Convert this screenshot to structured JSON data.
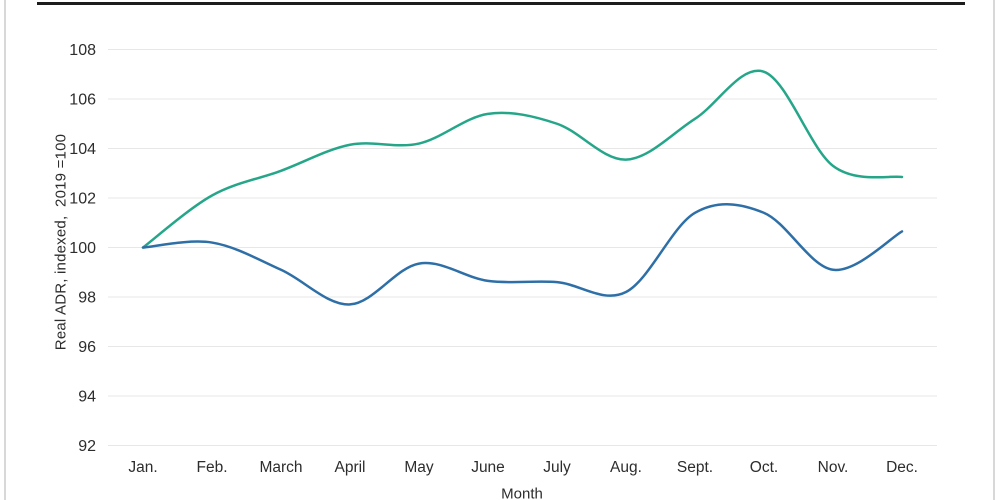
{
  "frame": {
    "top_rule_color": "#1c1c1c",
    "page_edge_color": "#d8d8d8",
    "background": "#ffffff"
  },
  "chart_data": {
    "type": "line",
    "title": "",
    "xlabel": "Month",
    "ylabel": "Real ADR, indexed,  2019 =100",
    "x": [
      "Jan.",
      "Feb.",
      "March",
      "April",
      "May",
      "June",
      "July",
      "Aug.",
      "Sept.",
      "Oct.",
      "Nov.",
      "Dec."
    ],
    "series": [
      {
        "name": "teal-series",
        "color": "#26a689",
        "values": [
          100.0,
          102.1,
          103.1,
          104.15,
          104.2,
          105.4,
          105.0,
          103.55,
          105.2,
          107.1,
          103.3,
          102.85
        ]
      },
      {
        "name": "blue-series",
        "color": "#2e6fa7",
        "values": [
          100.0,
          100.2,
          99.1,
          97.7,
          99.35,
          98.65,
          98.6,
          98.2,
          101.4,
          101.4,
          99.1,
          100.65
        ]
      }
    ],
    "y_ticks": [
      92,
      94,
      96,
      98,
      100,
      102,
      104,
      106,
      108
    ],
    "ylim": [
      92,
      108
    ],
    "grid": true,
    "gridline_color": "#e7e7e7",
    "tick_label_color": "#2d2d2d",
    "legend_position": "none",
    "line_style": "smooth"
  }
}
